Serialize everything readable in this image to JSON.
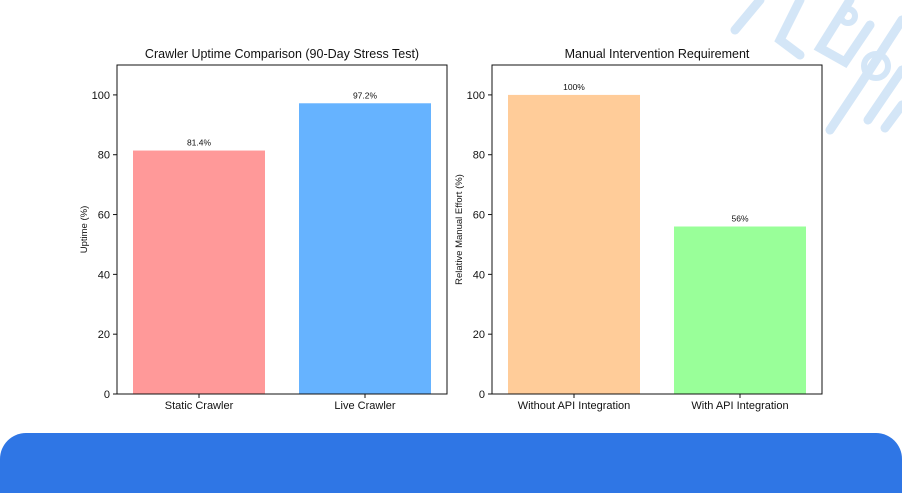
{
  "colors": {
    "bottom_band": "#2f76e5",
    "decoration": "#cfe3f6"
  },
  "chart_data": [
    {
      "type": "bar",
      "title": "Crawler Uptime Comparison (90-Day Stress Test)",
      "xlabel": "",
      "ylabel": "Uptime (%)",
      "categories": [
        "Static Crawler",
        "Live Crawler"
      ],
      "values": [
        81.4,
        97.2
      ],
      "data_labels": [
        "81.4%",
        "97.2%"
      ],
      "colors": [
        "#ff9999",
        "#66b3ff"
      ],
      "ylim": [
        0,
        110
      ],
      "yticks": [
        0,
        20,
        40,
        60,
        80,
        100
      ],
      "grid": false,
      "legend": "none"
    },
    {
      "type": "bar",
      "title": "Manual Intervention Requirement",
      "xlabel": "",
      "ylabel": "Relative Manual Effort (%)",
      "categories": [
        "Without API Integration",
        "With API Integration"
      ],
      "values": [
        100,
        56
      ],
      "data_labels": [
        "100%",
        "56%"
      ],
      "colors": [
        "#ffcc99",
        "#99ff99"
      ],
      "ylim": [
        0,
        110
      ],
      "yticks": [
        0,
        20,
        40,
        60,
        80,
        100
      ],
      "grid": false,
      "legend": "none"
    }
  ]
}
